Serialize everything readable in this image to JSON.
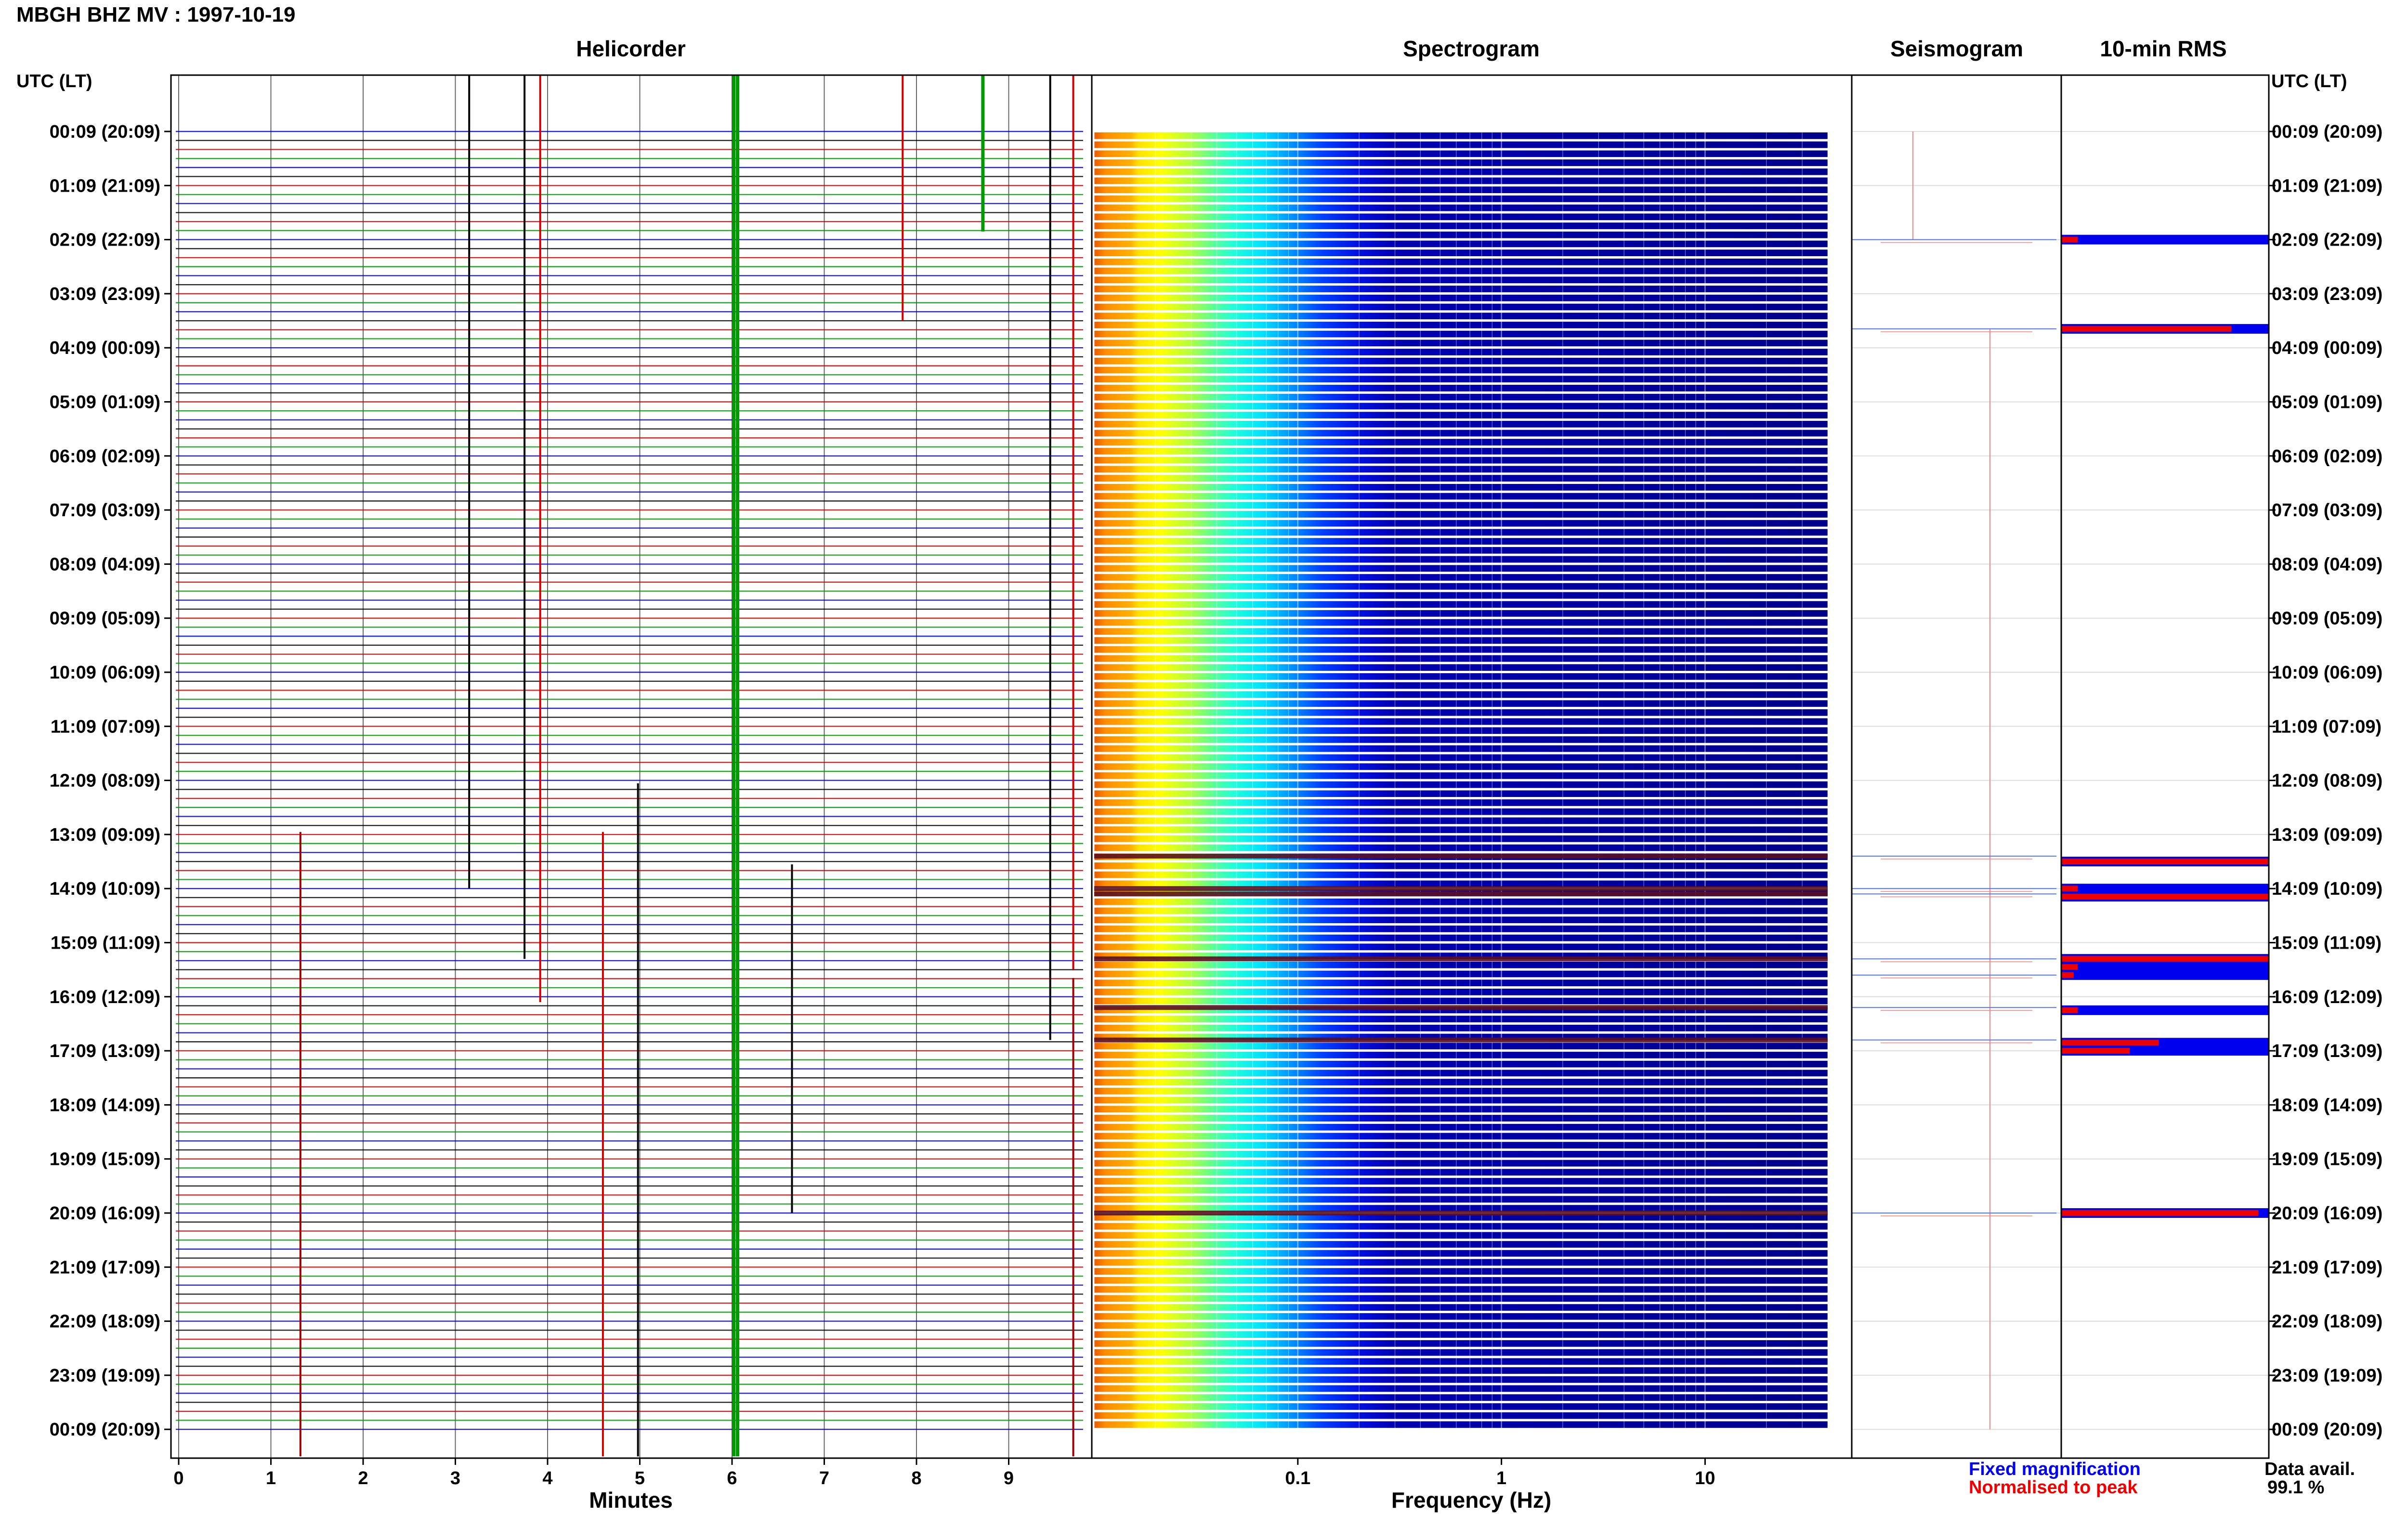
{
  "header": {
    "title": "MBGH BHZ MV : 1997-10-19"
  },
  "panels": {
    "helicorder": "Helicorder",
    "spectrogram": "Spectrogram",
    "seismogram": "Seismogram",
    "rms": "10-min RMS"
  },
  "time_axis_label": "UTC (LT)",
  "legend": {
    "fixed": "Fixed magnification",
    "normalised": "Normalised to peak",
    "fixed_color": "#0000ee",
    "normalised_color": "#ee0000"
  },
  "data_avail": {
    "label": "Data avail.",
    "value": "99.1 %"
  },
  "chart_data": [
    {
      "type": "line",
      "name": "helicorder",
      "title": "Helicorder",
      "xlabel": "Minutes",
      "xlim": [
        -0.1,
        10.1
      ],
      "x_ticks": [
        0,
        1,
        2,
        3,
        4,
        5,
        6,
        7,
        8,
        9
      ],
      "ylabel": "UTC (LT)",
      "time_ticks": [
        "00:09 (20:09)",
        "01:09 (21:09)",
        "02:09 (22:09)",
        "03:09 (23:09)",
        "04:09 (00:09)",
        "05:09 (01:09)",
        "06:09 (02:09)",
        "07:09 (03:09)",
        "08:09 (04:09)",
        "09:09 (05:09)",
        "10:09 (06:09)",
        "11:09 (07:09)",
        "12:09 (08:09)",
        "13:09 (09:09)",
        "14:09 (10:09)",
        "15:09 (11:09)",
        "16:09 (12:09)",
        "17:09 (13:09)",
        "18:09 (14:09)",
        "19:09 (15:09)",
        "20:09 (16:09)",
        "21:09 (17:09)",
        "22:09 (18:09)",
        "23:09 (19:09)",
        "00:09 (20:09)"
      ],
      "rows_per_hour": 6,
      "trace_colors": [
        "#0000cc",
        "#000000",
        "#cc0000",
        "#009900"
      ],
      "events": [
        {
          "minute": 3.15,
          "from_hour": 0,
          "to_hour": 14.0,
          "color": "#000000"
        },
        {
          "minute": 3.75,
          "from_hour": 0,
          "to_hour": 15.3,
          "color": "#000000"
        },
        {
          "minute": 3.92,
          "from_hour": 0,
          "to_hour": 16.1,
          "color": "#cc0000"
        },
        {
          "minute": 6.02,
          "from_hour": 0,
          "to_hour": 24.5,
          "color": "#009900"
        },
        {
          "minute": 6.06,
          "from_hour": 0,
          "to_hour": 24.5,
          "color": "#009900"
        },
        {
          "minute": 8.72,
          "from_hour": 0,
          "to_hour": 1.85,
          "color": "#009900"
        },
        {
          "minute": 7.85,
          "from_hour": 0,
          "to_hour": 3.5,
          "color": "#cc0000"
        },
        {
          "minute": 9.45,
          "from_hour": 0,
          "to_hour": 16.8,
          "color": "#000000"
        },
        {
          "minute": 9.7,
          "from_hour": 0,
          "to_hour": 15.5,
          "color": "#cc0000"
        },
        {
          "minute": 4.98,
          "from_hour": 13.3,
          "to_hour": 24.5,
          "color": "#000000"
        },
        {
          "minute": 1.32,
          "from_hour": 14.2,
          "to_hour": 24.5,
          "color": "#990000"
        },
        {
          "minute": 4.6,
          "from_hour": 14.2,
          "to_hour": 24.5,
          "color": "#cc0000"
        },
        {
          "minute": 6.65,
          "from_hour": 14.8,
          "to_hour": 20.0,
          "color": "#000000"
        },
        {
          "minute": 9.7,
          "from_hour": 16.9,
          "to_hour": 24.5,
          "color": "#990000"
        }
      ]
    },
    {
      "type": "heatmap",
      "name": "spectrogram",
      "title": "Spectrogram",
      "xlabel": "Frequency (Hz)",
      "xscale": "log",
      "xlim": [
        0.01,
        40
      ],
      "x_ticks": [
        0.1,
        1,
        10
      ],
      "x_tick_labels": [
        "0.1",
        "1",
        "10"
      ],
      "colormap": "jet",
      "event_hours": [
        13.4,
        14.0,
        14.1,
        15.3,
        16.2,
        16.8,
        20.0
      ]
    },
    {
      "type": "line",
      "name": "seismogram",
      "title": "Seismogram",
      "event_hours": [
        2.0,
        3.65,
        13.4,
        14.0,
        14.1,
        15.3,
        15.6,
        16.2,
        16.8,
        20.0
      ]
    },
    {
      "type": "bar",
      "name": "10-min RMS",
      "title": "10-min RMS",
      "orientation": "horizontal",
      "xlim": [
        0,
        1
      ],
      "series": [
        {
          "name": "Fixed magnification",
          "color": "#0000ee",
          "hours": [
            2.0,
            3.65,
            13.5,
            14.0,
            14.15,
            15.3,
            15.45,
            15.6,
            16.25,
            16.85,
            17.0,
            20.0
          ],
          "values": [
            1.0,
            1.0,
            1.0,
            1.0,
            1.0,
            1.0,
            1.0,
            1.0,
            1.0,
            1.0,
            1.0,
            1.0
          ]
        },
        {
          "name": "Normalised to peak",
          "color": "#ee0000",
          "hours": [
            2.0,
            3.65,
            13.5,
            14.0,
            14.15,
            15.3,
            15.45,
            15.6,
            16.25,
            16.85,
            17.0,
            20.0
          ],
          "values": [
            0.08,
            0.82,
            1.0,
            0.08,
            1.0,
            1.0,
            0.08,
            0.06,
            0.08,
            0.47,
            0.33,
            0.95
          ]
        }
      ]
    }
  ]
}
